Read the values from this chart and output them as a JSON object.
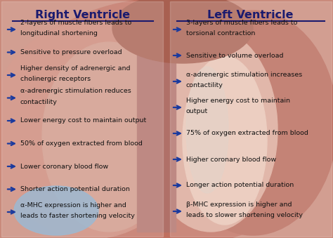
{
  "title_rv": "Right Ventricle",
  "title_lv": "Left Ventricle",
  "title_color": "#1a1a6e",
  "arrow_color": "#1a3a9e",
  "text_color": "#111111",
  "bg_outer": "#c9897a",
  "bg_mid": "#d4a090",
  "bg_light": "#e8c4b8",
  "bg_center": "#ddb8a8",
  "blue_patch": "#a8c8e8",
  "figsize": [
    4.74,
    3.39
  ],
  "dpi": 100,
  "rv_items": [
    [
      "2-layers of muscle fibers leads to",
      "longitudinal shortening"
    ],
    [
      "Sensitive to pressure overload",
      ""
    ],
    [
      "Higher density of adrenergic and",
      "cholinergic receptors"
    ],
    [
      "α-adrenergic stimulation reduces",
      "contactility"
    ],
    [
      "Lower energy cost to maintain output",
      ""
    ],
    [
      "50% of oxygen extracted from blood",
      ""
    ],
    [
      "Lower coronary blood flow",
      ""
    ],
    [
      "Shorter action potential duration",
      ""
    ],
    [
      "α-MHC expression is higher and",
      "leads to faster shortening velocity"
    ]
  ],
  "lv_items": [
    [
      "3-layers of muscle fibers leads to",
      "torsional contraction"
    ],
    [
      "Sensitive to volume overload",
      ""
    ],
    [
      "α-adrenergic stimulation increases",
      "contactility"
    ],
    [
      "Higher energy cost to maintain",
      "output"
    ],
    [
      "75% of oxygen extracted from blood",
      ""
    ],
    [
      "Higher coronary blood flow",
      ""
    ],
    [
      "Longer action potential duration",
      ""
    ],
    [
      "β-MHC expression is higher and",
      "leads to slower shortening velocity"
    ]
  ]
}
